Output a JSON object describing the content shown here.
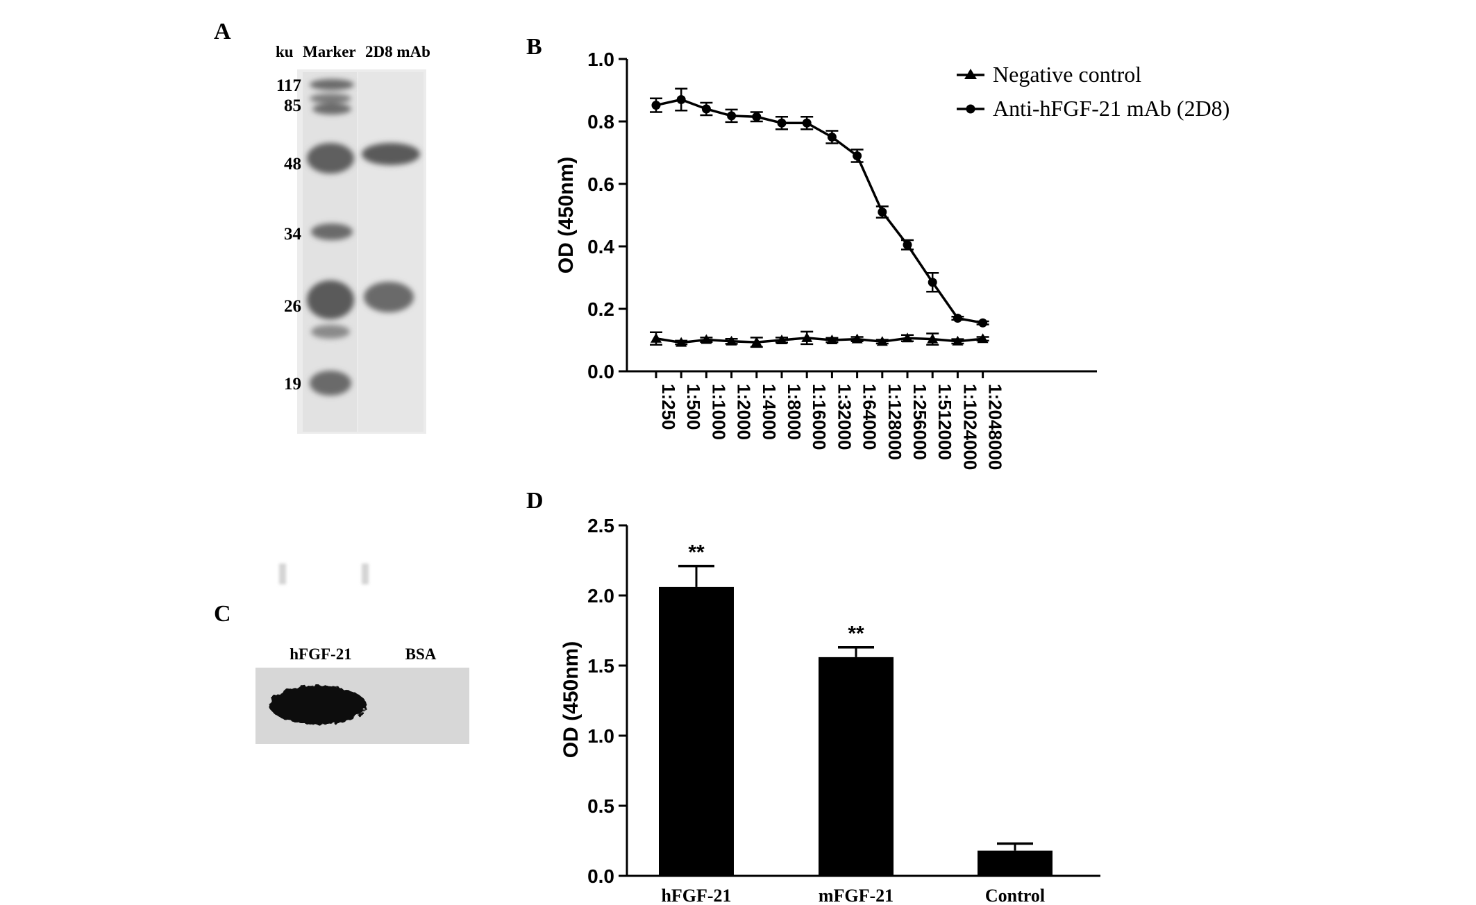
{
  "panels": {
    "a": {
      "letter": "A",
      "header_unit": "ku",
      "header_marker": "Marker",
      "header_sample": "2D8 mAb",
      "marker_sizes": [
        "117",
        "85",
        "48",
        "34",
        "26",
        "19"
      ]
    },
    "b": {
      "letter": "B"
    },
    "c": {
      "letter": "C",
      "lane_labels": [
        "hFGF-21",
        "BSA"
      ]
    },
    "d": {
      "letter": "D"
    }
  },
  "chart_data": [
    {
      "panel": "B",
      "type": "line",
      "ylabel": "OD (450nm)",
      "xlabel": "",
      "ylim": [
        0,
        1.0
      ],
      "yticks": [
        "0.0",
        "0.2",
        "0.4",
        "0.6",
        "0.8",
        "1.0"
      ],
      "categories": [
        "1:250",
        "1:500",
        "1:1000",
        "1:2000",
        "1:4000",
        "1:8000",
        "1:16000",
        "1:32000",
        "1:64000",
        "1:128000",
        "1:256000",
        "1:512000",
        "1:1024000",
        "1:2048000"
      ],
      "series": [
        {
          "name": "Negative control",
          "marker": "triangle",
          "values": [
            0.105,
            0.092,
            0.101,
            0.096,
            0.093,
            0.1,
            0.107,
            0.1,
            0.103,
            0.095,
            0.106,
            0.103,
            0.096,
            0.104
          ],
          "errors": [
            0.02,
            0.006,
            0.007,
            0.008,
            0.015,
            0.008,
            0.02,
            0.007,
            0.007,
            0.006,
            0.01,
            0.018,
            0.007,
            0.006
          ]
        },
        {
          "name": "Anti-hFGF-21 mAb (2D8)",
          "marker": "circle",
          "values": [
            0.852,
            0.87,
            0.84,
            0.818,
            0.815,
            0.795,
            0.795,
            0.75,
            0.69,
            0.51,
            0.405,
            0.285,
            0.17,
            0.155
          ],
          "errors": [
            0.022,
            0.035,
            0.02,
            0.02,
            0.015,
            0.02,
            0.02,
            0.02,
            0.02,
            0.018,
            0.015,
            0.03,
            0.005,
            0.005
          ]
        }
      ],
      "legend": "top-right",
      "grid": false
    },
    {
      "panel": "D",
      "type": "bar",
      "ylabel": "OD (450nm)",
      "xlabel": "",
      "ylim": [
        0,
        2.5
      ],
      "yticks": [
        "0.0",
        "0.5",
        "1.0",
        "1.5",
        "2.0",
        "2.5"
      ],
      "categories": [
        "hFGF-21",
        "mFGF-21",
        "Control"
      ],
      "values": [
        2.06,
        1.56,
        0.18
      ],
      "errors": [
        0.15,
        0.07,
        0.05
      ],
      "annotations": [
        "**",
        "**",
        ""
      ],
      "bar_color": "#000000",
      "grid": false
    }
  ]
}
